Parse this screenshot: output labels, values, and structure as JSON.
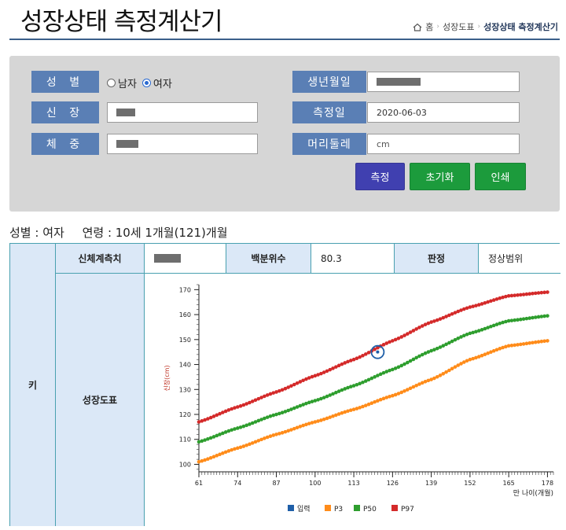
{
  "header": {
    "title": "성장상태 측정계산기",
    "breadcrumb": {
      "home": "홈",
      "section": "성장도표",
      "current": "성장상태 측정계산기"
    }
  },
  "form": {
    "sex_label": "성 별",
    "sex_options": [
      "남자",
      "여자"
    ],
    "sex_selected": "여자",
    "height_label": "신 장",
    "weight_label": "체 중",
    "birth_label": "생년월일",
    "measure_date_label": "측정일",
    "measure_date_value": "2020-06-03",
    "head_label": "머리둘레",
    "head_placeholder": "cm",
    "buttons": {
      "measure": "측정",
      "reset": "초기화",
      "print": "인쇄"
    },
    "colors": {
      "label_bg": "#5a7fb5",
      "measure_btn": "#4040b0",
      "green_btn": "#1c9b3c"
    }
  },
  "summary": {
    "sex": "성별 : 여자",
    "age": "연령 : 10세 1개월(121)개월"
  },
  "result": {
    "row_header": "키",
    "col_measure": "신체계측치",
    "col_percentile": "백분위수",
    "percentile_value": "80.3",
    "col_judgement": "판정",
    "judgement_value": "정상범위",
    "chart_label": "성장도표"
  },
  "chart_data": {
    "type": "line",
    "xlabel": "만 나이(개월)",
    "ylabel": "신장(cm)",
    "xlim": [
      61,
      180
    ],
    "ylim": [
      97,
      172
    ],
    "x_ticks": [
      61,
      74,
      87,
      100,
      113,
      126,
      139,
      152,
      165,
      178
    ],
    "y_ticks": [
      100,
      110,
      120,
      130,
      140,
      150,
      160,
      170
    ],
    "legend": [
      "입력",
      "P3",
      "P50",
      "P97"
    ],
    "legend_position": "bottom",
    "series": [
      {
        "name": "P3",
        "color": "#ff8c1a",
        "x": [
          61,
          74,
          87,
          100,
          113,
          126,
          139,
          152,
          165,
          178
        ],
        "values": [
          101,
          106.5,
          112,
          117,
          122,
          127.5,
          134,
          142,
          147.5,
          149.5
        ]
      },
      {
        "name": "P50",
        "color": "#2e9e2e",
        "x": [
          61,
          74,
          87,
          100,
          113,
          126,
          139,
          152,
          165,
          178
        ],
        "values": [
          109,
          114.5,
          120,
          125.5,
          131.5,
          138,
          145.5,
          152.5,
          157.5,
          159.5
        ]
      },
      {
        "name": "P97",
        "color": "#d42a2a",
        "x": [
          61,
          74,
          87,
          100,
          113,
          126,
          139,
          152,
          165,
          178
        ],
        "values": [
          117,
          123,
          129,
          135.5,
          142,
          149.5,
          157,
          163,
          167.5,
          169
        ]
      }
    ],
    "input_point": {
      "name": "입력",
      "color": "#1f5fa8",
      "x": 121,
      "y": 145
    }
  }
}
